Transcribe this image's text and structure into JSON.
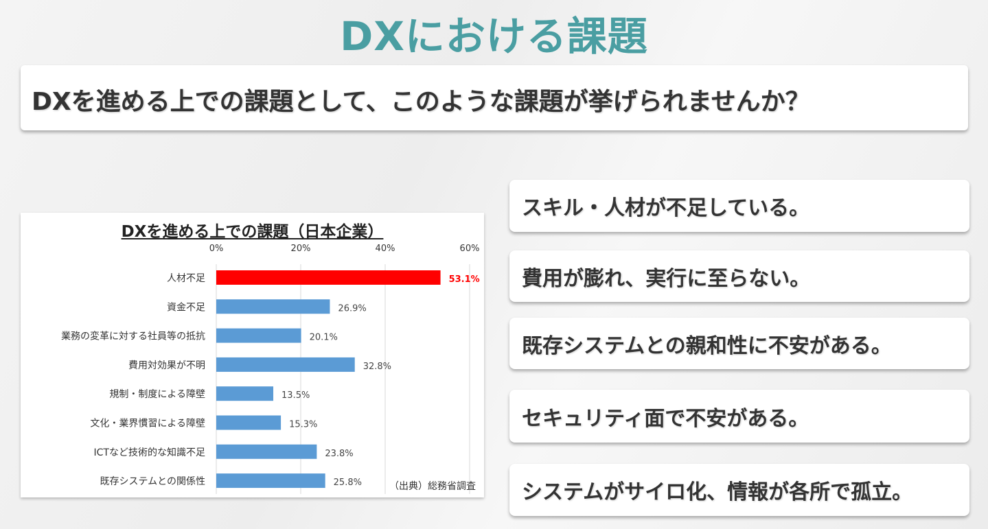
{
  "title": "DXにおける課題",
  "question": "DXを進める上での課題として、このような課題が挙げられませんか？",
  "issues": [
    "スキル・人材が不足している。",
    "費用が膨れ、実行に至らない。",
    "既存システムとの親和性に不安がある。",
    "セキュリティ面で不安がある。",
    "システムがサイロ化、情報が各所で孤立。"
  ],
  "colors": {
    "title": "#4a9ea2",
    "highlight": "#ff0000",
    "bar": "#5b9bd5"
  },
  "chart_data": {
    "type": "bar",
    "orientation": "horizontal",
    "title": "DXを進める上での課題（日本企業）",
    "source": "（出典）総務省調査",
    "categories": [
      "人材不足",
      "資金不足",
      "業務の変革に対する社員等の抵抗",
      "費用対効果が不明",
      "規制・制度による障壁",
      "文化・業界慣習による障壁",
      "ICTなど技術的な知識不足",
      "既存システムとの関係性"
    ],
    "values": [
      53.1,
      26.9,
      20.1,
      32.8,
      13.5,
      15.3,
      23.8,
      25.8
    ],
    "data_labels": [
      "53.1%",
      "26.9%",
      "20.1%",
      "32.8%",
      "13.5%",
      "15.3%",
      "23.8%",
      "25.8%"
    ],
    "highlight_index": 0,
    "xlim": [
      0,
      60
    ],
    "x_ticks": [
      "0%",
      "20%",
      "40%",
      "60%"
    ],
    "x_tick_values": [
      0,
      20,
      40,
      60
    ],
    "x_axis_position": "top",
    "grid": true
  }
}
